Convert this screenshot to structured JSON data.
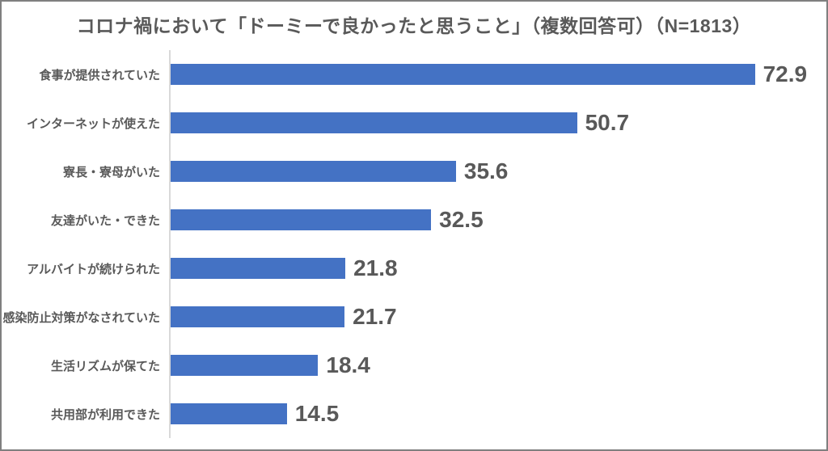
{
  "window": {
    "background_color": "#FFFFFF",
    "border_color": "#7F7F7F"
  },
  "chart_data": {
    "type": "bar",
    "orientation": "horizontal",
    "title": "コロナ禍において「ドーミーで良かったと思うこと」（複数回答可）（N=1813）",
    "categories": [
      "食事が提供されていた",
      "インターネットが使えた",
      "寮長・寮母がいた",
      "友達がいた・できた",
      "アルバイトが続けられた",
      "感染防止対策がなされていた",
      "生活リズムが保てた",
      "共用部が利用できた"
    ],
    "values": [
      72.9,
      50.7,
      35.6,
      32.5,
      21.8,
      21.7,
      18.4,
      14.5
    ],
    "xlim": [
      0,
      80
    ],
    "xlabel": "",
    "ylabel": "",
    "grid": false,
    "legend_position": "none",
    "value_label_position": "outside-end",
    "bar_color": "#4472C4",
    "text_color": "#595959",
    "axis_line_color": "#D9D9D9"
  }
}
